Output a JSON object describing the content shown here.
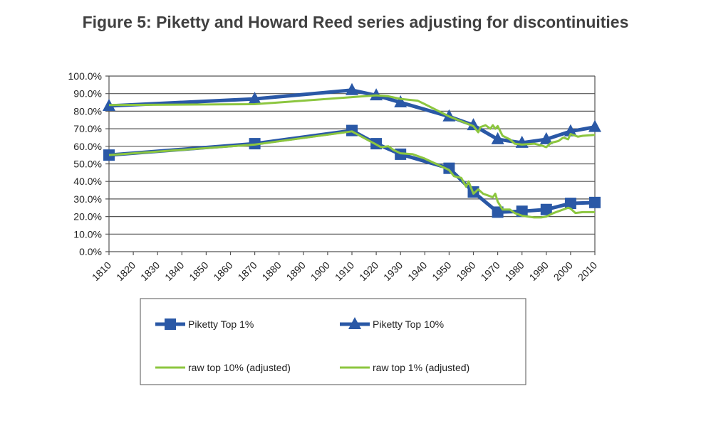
{
  "chart_data": {
    "type": "line",
    "title": "Figure 5: Piketty and Howard Reed series adjusting for discontinuities",
    "xlabel": "",
    "ylabel": "",
    "xlim": [
      1810,
      2010
    ],
    "ylim": [
      0,
      100
    ],
    "x_ticks": [
      "1810",
      "1820",
      "1830",
      "1840",
      "1850",
      "1860",
      "1870",
      "1880",
      "1890",
      "1900",
      "1910",
      "1920",
      "1930",
      "1940",
      "1950",
      "1960",
      "1970",
      "1980",
      "1990",
      "2000",
      "2010"
    ],
    "y_ticks": [
      "0.0%",
      "10.0%",
      "20.0%",
      "30.0%",
      "40.0%",
      "50.0%",
      "60.0%",
      "70.0%",
      "80.0%",
      "90.0%",
      "100.0%"
    ],
    "grid": true,
    "legend_position": "bottom",
    "series": [
      {
        "name": "Piketty Top 1%",
        "color": "#2a58a6",
        "marker": "square",
        "points": [
          [
            1810,
            55
          ],
          [
            1870,
            61.5
          ],
          [
            1910,
            69
          ],
          [
            1920,
            61.5
          ],
          [
            1930,
            55.5
          ],
          [
            1950,
            47.5
          ],
          [
            1960,
            34
          ],
          [
            1970,
            22.5
          ],
          [
            1980,
            23
          ],
          [
            1990,
            24
          ],
          [
            2000,
            27.5
          ],
          [
            2010,
            28
          ]
        ]
      },
      {
        "name": "Piketty Top 10%",
        "color": "#2a58a6",
        "marker": "triangle",
        "points": [
          [
            1810,
            83
          ],
          [
            1870,
            87
          ],
          [
            1910,
            92
          ],
          [
            1920,
            89
          ],
          [
            1930,
            85
          ],
          [
            1950,
            77
          ],
          [
            1960,
            72
          ],
          [
            1970,
            64
          ],
          [
            1980,
            62
          ],
          [
            1990,
            64
          ],
          [
            2000,
            68.5
          ],
          [
            2010,
            71
          ]
        ]
      },
      {
        "name": "raw top 10% (adjusted)",
        "color": "#8cc63f",
        "marker": "none",
        "points": [
          [
            1810,
            83.5
          ],
          [
            1870,
            84
          ],
          [
            1910,
            88
          ],
          [
            1920,
            89
          ],
          [
            1925,
            88.5
          ],
          [
            1930,
            87
          ],
          [
            1937,
            86
          ],
          [
            1940,
            84
          ],
          [
            1950,
            77
          ],
          [
            1960,
            71.5
          ],
          [
            1962,
            68
          ],
          [
            1963,
            71
          ],
          [
            1965,
            72
          ],
          [
            1967,
            70
          ],
          [
            1968,
            72
          ],
          [
            1969,
            70
          ],
          [
            1970,
            71.5
          ],
          [
            1972,
            66
          ],
          [
            1975,
            64
          ],
          [
            1977,
            61.5
          ],
          [
            1980,
            61
          ],
          [
            1985,
            61.5
          ],
          [
            1988,
            60.5
          ],
          [
            1990,
            59.5
          ],
          [
            1992,
            62
          ],
          [
            1995,
            63
          ],
          [
            1997,
            65
          ],
          [
            1999,
            64
          ],
          [
            2000,
            67
          ],
          [
            2003,
            65.5
          ],
          [
            2005,
            66
          ],
          [
            2010,
            66.5
          ]
        ]
      },
      {
        "name": "raw top 1% (adjusted)",
        "color": "#8cc63f",
        "marker": "none",
        "points": [
          [
            1810,
            55
          ],
          [
            1870,
            61
          ],
          [
            1910,
            68.5
          ],
          [
            1920,
            61
          ],
          [
            1922,
            59.5
          ],
          [
            1925,
            60
          ],
          [
            1927,
            58
          ],
          [
            1930,
            56
          ],
          [
            1935,
            55.5
          ],
          [
            1940,
            53
          ],
          [
            1950,
            46.5
          ],
          [
            1952,
            43
          ],
          [
            1955,
            42
          ],
          [
            1957,
            37
          ],
          [
            1958,
            40
          ],
          [
            1960,
            33
          ],
          [
            1962,
            35.5
          ],
          [
            1964,
            33
          ],
          [
            1966,
            32
          ],
          [
            1968,
            31
          ],
          [
            1969,
            33
          ],
          [
            1970,
            28.5
          ],
          [
            1972,
            24
          ],
          [
            1975,
            24
          ],
          [
            1977,
            22
          ],
          [
            1980,
            20.5
          ],
          [
            1985,
            19.5
          ],
          [
            1988,
            19.5
          ],
          [
            1990,
            20
          ],
          [
            1993,
            22
          ],
          [
            1997,
            24
          ],
          [
            1999,
            25
          ],
          [
            2000,
            24.5
          ],
          [
            2002,
            22
          ],
          [
            2005,
            22.5
          ],
          [
            2010,
            22.5
          ]
        ]
      }
    ]
  }
}
